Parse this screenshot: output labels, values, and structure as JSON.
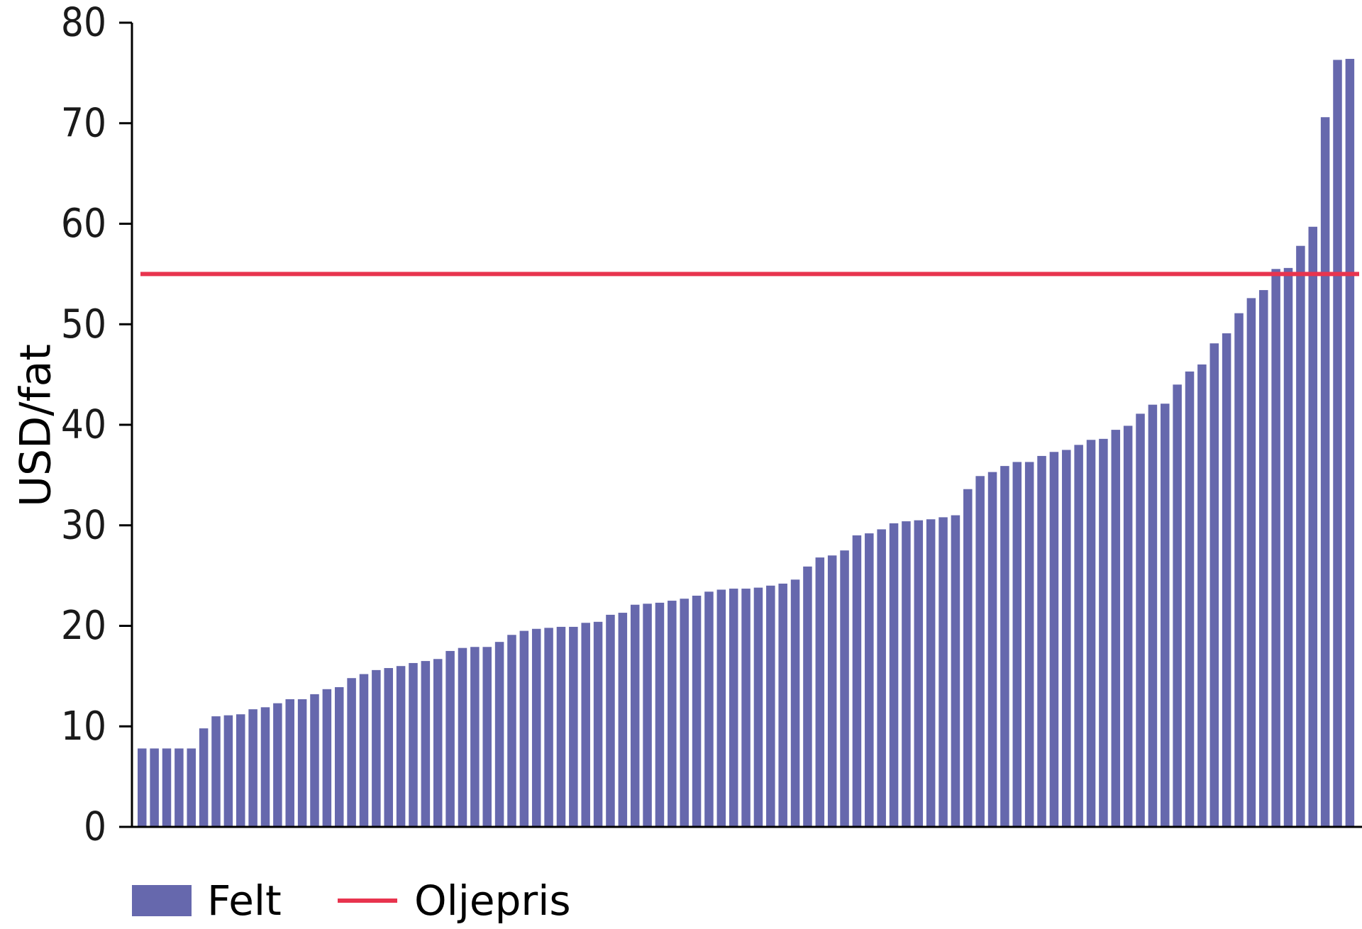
{
  "chart_data": {
    "type": "bar",
    "ylabel": "USD/fat",
    "ylim": [
      0,
      80
    ],
    "yticks": [
      "0",
      "10",
      "20",
      "30",
      "40",
      "50",
      "60",
      "70",
      "80"
    ],
    "grid": false,
    "legend_position": "bottom-left",
    "series": [
      {
        "name": "Felt",
        "type": "bar",
        "color": "#6668ad",
        "values": [
          7.8,
          7.8,
          7.8,
          7.8,
          7.8,
          9.8,
          11.0,
          11.1,
          11.2,
          11.7,
          11.9,
          12.3,
          12.7,
          12.7,
          13.2,
          13.7,
          13.9,
          14.8,
          15.2,
          15.6,
          15.8,
          16.0,
          16.3,
          16.5,
          16.7,
          17.5,
          17.8,
          17.9,
          17.9,
          18.4,
          19.1,
          19.5,
          19.7,
          19.8,
          19.9,
          19.9,
          20.3,
          20.4,
          21.1,
          21.3,
          22.1,
          22.2,
          22.3,
          22.5,
          22.7,
          23.0,
          23.4,
          23.6,
          23.7,
          23.7,
          23.8,
          24.0,
          24.2,
          24.6,
          25.9,
          26.8,
          27.0,
          27.5,
          29.0,
          29.2,
          29.6,
          30.2,
          30.4,
          30.5,
          30.6,
          30.8,
          31.0,
          33.6,
          34.9,
          35.3,
          35.9,
          36.3,
          36.3,
          36.9,
          37.3,
          37.5,
          38.0,
          38.5,
          38.6,
          39.5,
          39.9,
          41.1,
          42.0,
          42.1,
          44.0,
          45.3,
          46.0,
          48.1,
          49.1,
          51.1,
          52.6,
          53.4,
          55.5,
          55.6,
          57.8,
          59.7,
          70.6,
          76.3,
          76.4
        ]
      },
      {
        "name": "Oljepris",
        "type": "line",
        "color": "#e8344e",
        "value": 55.0
      }
    ]
  }
}
